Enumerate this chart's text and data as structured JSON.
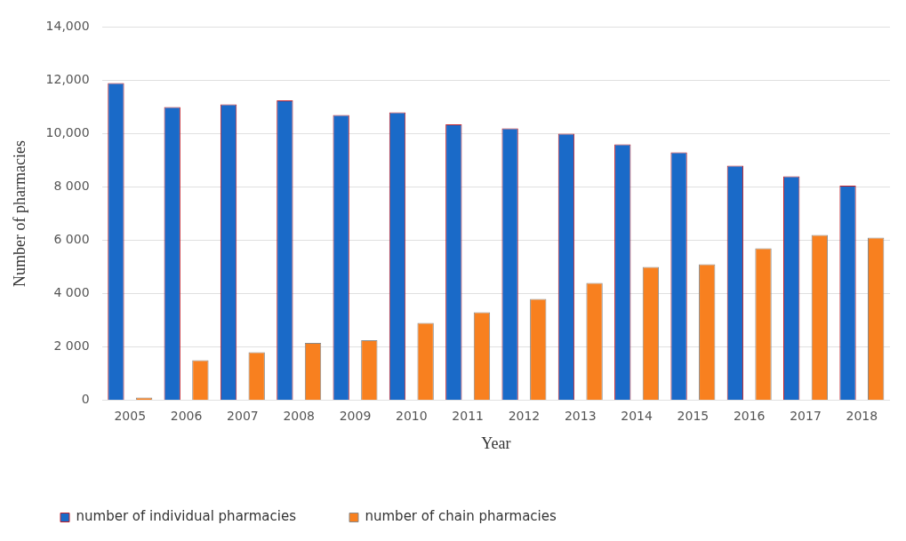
{
  "chart_data": {
    "type": "bar",
    "xlabel": "Year",
    "ylabel": "Number of pharmacies",
    "categories": [
      "2005",
      "2006",
      "2007",
      "2008",
      "2009",
      "2010",
      "2011",
      "2012",
      "2013",
      "2014",
      "2015",
      "2016",
      "2017",
      "2018"
    ],
    "series": [
      {
        "name": "number of individual pharmacies",
        "color": "#1a6ac8",
        "values": [
          11900,
          11000,
          11100,
          11250,
          10700,
          10800,
          10350,
          10200,
          10000,
          9600,
          9300,
          8800,
          8400,
          8050
        ]
      },
      {
        "name": "number of chain pharmacies",
        "color": "#f8801f",
        "values": [
          100,
          1500,
          1800,
          2150,
          2250,
          2900,
          3300,
          3800,
          4400,
          5000,
          5100,
          5700,
          6200,
          6100
        ]
      }
    ],
    "ylim": [
      0,
      14000
    ],
    "yticks": [
      0,
      {
        "value": 2000,
        "label": "2 000"
      },
      {
        "value": 4000,
        "label": "4 000"
      },
      {
        "value": 6000,
        "label": "6 000"
      },
      {
        "value": 8000,
        "label": "8 000"
      },
      {
        "value": 10000,
        "label": "10,000"
      },
      {
        "value": 12000,
        "label": "12,000"
      },
      {
        "value": 14000,
        "label": "14,000"
      }
    ],
    "grid": "y",
    "legend": "bottom left"
  }
}
